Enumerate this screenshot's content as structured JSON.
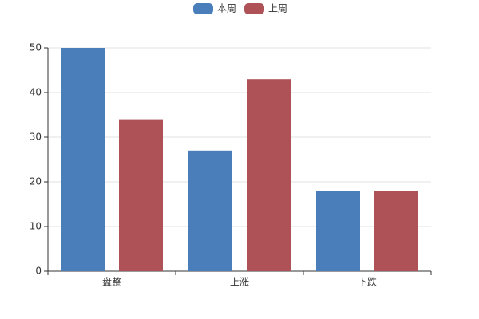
{
  "chart_data": {
    "type": "bar",
    "categories": [
      "盘整",
      "上涨",
      "下跌"
    ],
    "series": [
      {
        "name": "本周",
        "color": "#4a7ebb",
        "values": [
          50,
          27,
          18
        ]
      },
      {
        "name": "上周",
        "color": "#ae5257",
        "values": [
          34,
          43,
          18
        ]
      }
    ],
    "ylim": [
      0,
      50
    ],
    "yticks": [
      0,
      10,
      20,
      30,
      40,
      50
    ],
    "grid": true,
    "legend": "top"
  }
}
